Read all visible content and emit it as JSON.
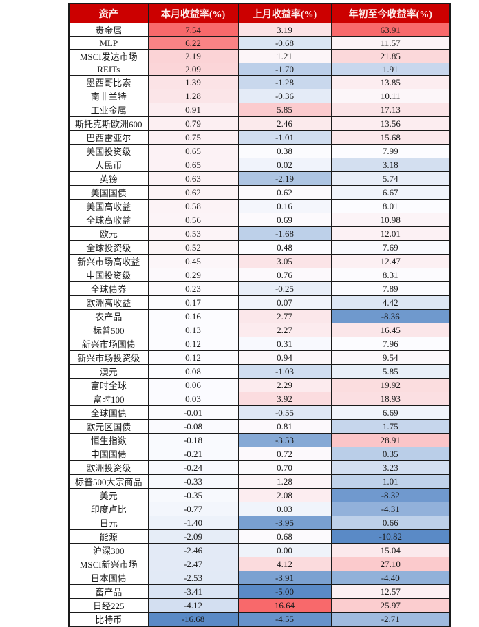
{
  "colors": {
    "header_bg": "#cc0000",
    "header_text": "#fdeeec",
    "border": "#1a1a1a",
    "cell_text": "#1b1b1b",
    "scale_max_red": "#F8696B",
    "scale_mid_white": "#FCFCFF",
    "scale_min_blue": "#5A8AC6"
  },
  "chart_data": {
    "type": "heatmap",
    "columns": [
      "资产",
      "本月收益率(%)",
      "上月收益率(%)",
      "年初至今收益率(%)"
    ],
    "color_scale": {
      "min_color": "#5A8AC6",
      "mid_color": "#FCFCFF",
      "max_color": "#F8696B",
      "midpoint": "percentile-50",
      "per_column": true
    },
    "rows": [
      {
        "asset": "贵金属",
        "values": [
          7.54,
          3.19,
          63.91
        ]
      },
      {
        "asset": "MLP",
        "values": [
          6.22,
          -0.68,
          11.57
        ]
      },
      {
        "asset": "MSCI发达市场",
        "values": [
          2.19,
          1.21,
          21.85
        ]
      },
      {
        "asset": "REITs",
        "values": [
          2.09,
          -1.7,
          1.91
        ]
      },
      {
        "asset": "墨西哥比索",
        "values": [
          1.39,
          -1.28,
          13.85
        ]
      },
      {
        "asset": "南非兰特",
        "values": [
          1.28,
          -0.36,
          10.11
        ]
      },
      {
        "asset": "工业金属",
        "values": [
          0.91,
          5.85,
          17.13
        ]
      },
      {
        "asset": "斯托克斯欧洲600",
        "values": [
          0.79,
          2.46,
          13.56
        ]
      },
      {
        "asset": "巴西雷亚尔",
        "values": [
          0.75,
          -1.01,
          15.68
        ]
      },
      {
        "asset": "美国投资级",
        "values": [
          0.65,
          0.38,
          7.99
        ]
      },
      {
        "asset": "人民币",
        "values": [
          0.65,
          0.02,
          3.18
        ]
      },
      {
        "asset": "英镑",
        "values": [
          0.63,
          -2.19,
          5.74
        ]
      },
      {
        "asset": "美国国债",
        "values": [
          0.62,
          0.62,
          6.67
        ]
      },
      {
        "asset": "美国高收益",
        "values": [
          0.58,
          0.16,
          8.01
        ]
      },
      {
        "asset": "全球高收益",
        "values": [
          0.56,
          0.69,
          10.98
        ]
      },
      {
        "asset": "欧元",
        "values": [
          0.53,
          -1.68,
          12.01
        ]
      },
      {
        "asset": "全球投资级",
        "values": [
          0.52,
          0.48,
          7.69
        ]
      },
      {
        "asset": "新兴市场高收益",
        "values": [
          0.45,
          3.05,
          12.47
        ]
      },
      {
        "asset": "中国投资级",
        "values": [
          0.29,
          0.76,
          8.31
        ]
      },
      {
        "asset": "全球债券",
        "values": [
          0.23,
          -0.25,
          7.89
        ]
      },
      {
        "asset": "欧洲高收益",
        "values": [
          0.17,
          0.07,
          4.42
        ]
      },
      {
        "asset": "农产品",
        "values": [
          0.16,
          2.77,
          -8.36
        ]
      },
      {
        "asset": "标普500",
        "values": [
          0.13,
          2.27,
          16.45
        ]
      },
      {
        "asset": "新兴市场国债",
        "values": [
          0.12,
          0.31,
          7.96
        ]
      },
      {
        "asset": "新兴市场投资级",
        "values": [
          0.12,
          0.94,
          9.54
        ]
      },
      {
        "asset": "澳元",
        "values": [
          0.08,
          -1.03,
          5.85
        ]
      },
      {
        "asset": "富时全球",
        "values": [
          0.06,
          2.29,
          19.92
        ]
      },
      {
        "asset": "富时100",
        "values": [
          0.03,
          3.92,
          18.93
        ]
      },
      {
        "asset": "全球国债",
        "values": [
          -0.01,
          -0.55,
          6.69
        ]
      },
      {
        "asset": "欧元区国债",
        "values": [
          -0.08,
          0.81,
          1.75
        ]
      },
      {
        "asset": "恒生指数",
        "values": [
          -0.18,
          -3.53,
          28.91
        ]
      },
      {
        "asset": "中国国债",
        "values": [
          -0.21,
          0.72,
          0.35
        ]
      },
      {
        "asset": "欧洲投资级",
        "values": [
          -0.24,
          0.7,
          3.23
        ]
      },
      {
        "asset": "标普500大宗商品",
        "values": [
          -0.33,
          1.28,
          1.01
        ]
      },
      {
        "asset": "美元",
        "values": [
          -0.35,
          2.08,
          -8.32
        ]
      },
      {
        "asset": "印度卢比",
        "values": [
          -0.77,
          0.03,
          -4.31
        ]
      },
      {
        "asset": "日元",
        "values": [
          -1.4,
          -3.95,
          0.66
        ]
      },
      {
        "asset": "能源",
        "values": [
          -2.09,
          0.68,
          -10.82
        ]
      },
      {
        "asset": "沪深300",
        "values": [
          -2.46,
          0.0,
          15.04
        ]
      },
      {
        "asset": "MSCI新兴市场",
        "values": [
          -2.47,
          4.12,
          27.1
        ]
      },
      {
        "asset": "日本国债",
        "values": [
          -2.53,
          -3.91,
          -4.4
        ]
      },
      {
        "asset": "畜产品",
        "values": [
          -3.41,
          -5.0,
          12.57
        ]
      },
      {
        "asset": "日经225",
        "values": [
          -4.12,
          16.64,
          25.97
        ]
      },
      {
        "asset": "比特币",
        "values": [
          -16.68,
          -4.55,
          -2.71
        ]
      }
    ]
  }
}
